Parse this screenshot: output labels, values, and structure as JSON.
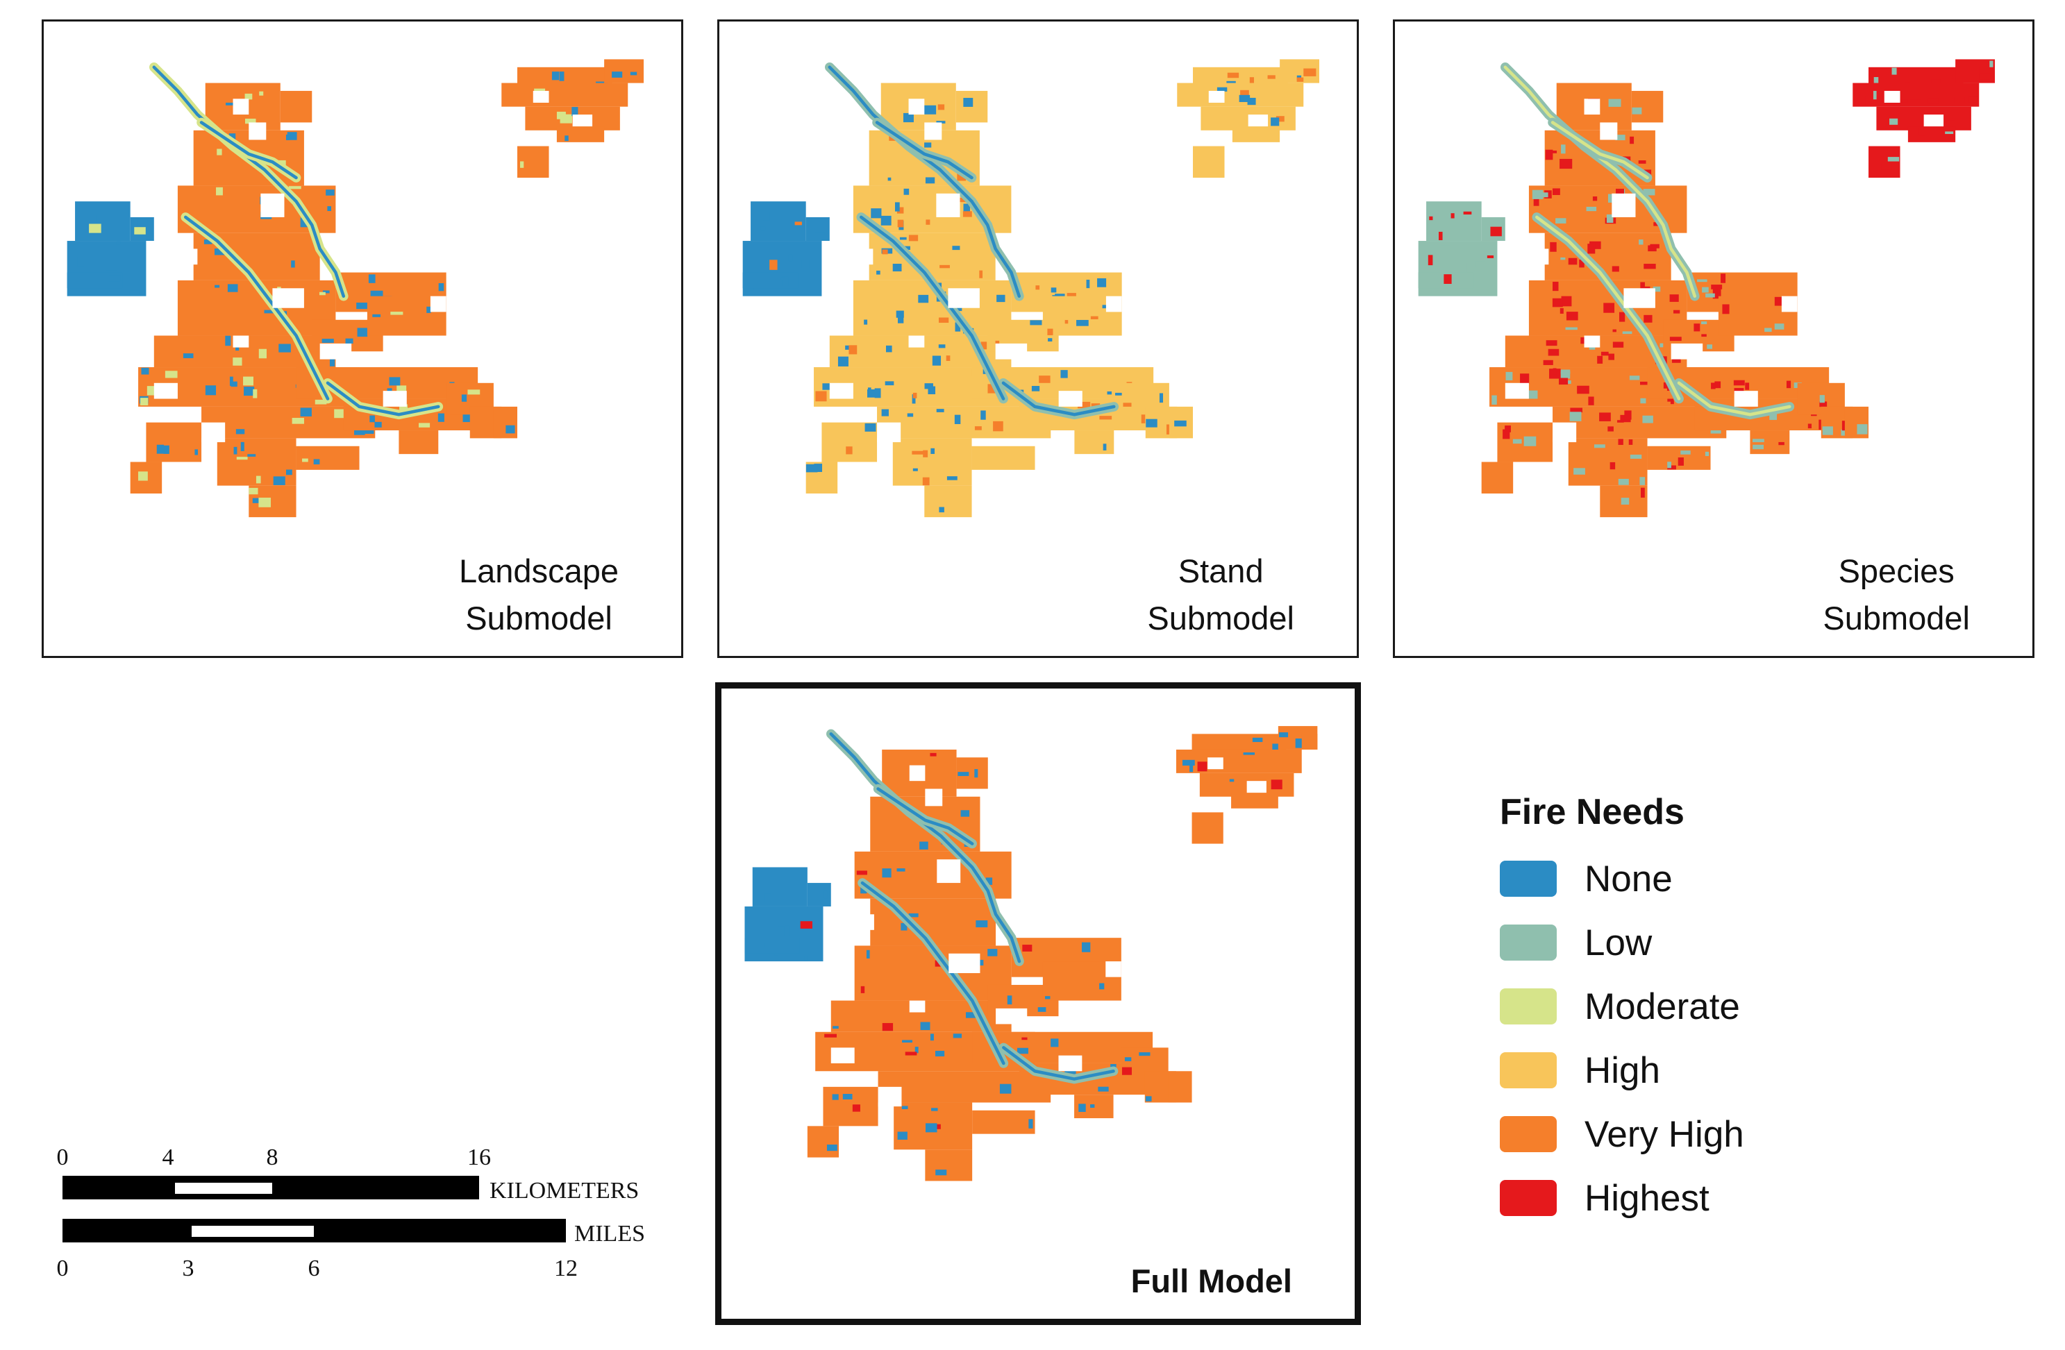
{
  "panels": [
    {
      "id": "landscape",
      "label_line1": "Landscape",
      "label_line2": "Submodel"
    },
    {
      "id": "stand",
      "label_line1": "Stand",
      "label_line2": "Submodel"
    },
    {
      "id": "species",
      "label_line1": "Species",
      "label_line2": "Submodel"
    },
    {
      "id": "full",
      "label_line1": "Full Model",
      "label_line2": ""
    }
  ],
  "legend": {
    "title": "Fire Needs",
    "items": [
      {
        "label": "None",
        "color": "#2b8cc4"
      },
      {
        "label": "Low",
        "color": "#8fbfae"
      },
      {
        "label": "Moderate",
        "color": "#d6e48a"
      },
      {
        "label": "High",
        "color": "#f8c55a"
      },
      {
        "label": "Very High",
        "color": "#f57f2b"
      },
      {
        "label": "Highest",
        "color": "#e5191c"
      }
    ]
  },
  "scale_bar": {
    "km_label": "KILOMETERS",
    "km_ticks": [
      "0",
      "4",
      "8",
      "16"
    ],
    "mi_label": "MILES",
    "mi_ticks": [
      "0",
      "3",
      "6",
      "12"
    ]
  }
}
